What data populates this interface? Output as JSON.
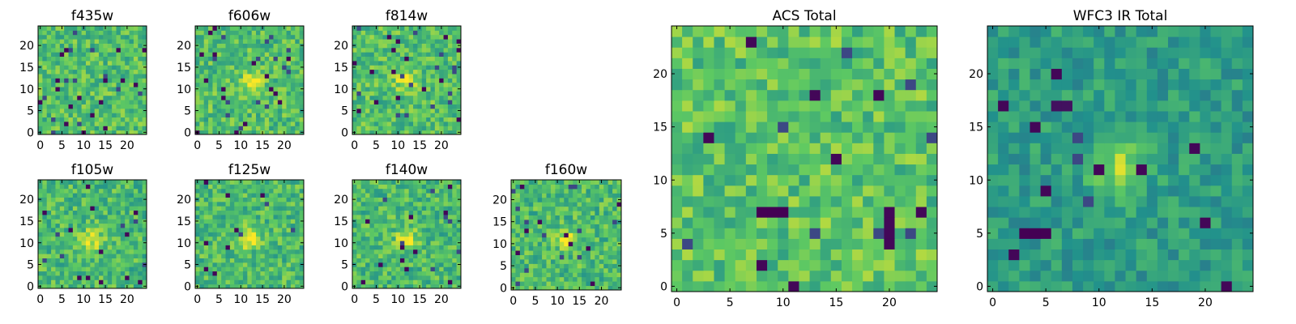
{
  "chart_data": [
    {
      "type": "heatmap",
      "title": "f435w",
      "colormap": "viridis",
      "grid": "25x25",
      "xlim": [
        0,
        25
      ],
      "ylim": [
        0,
        25
      ],
      "xticks": [
        0,
        5,
        10,
        15,
        20
      ],
      "yticks": [
        0,
        5,
        10,
        15,
        20
      ],
      "xtick_labels": [
        "0",
        "5",
        "10",
        "15",
        "20"
      ],
      "ytick_labels": [
        "0",
        "5",
        "10",
        "15",
        "20"
      ],
      "peak": null,
      "dark_pixels": 30
    },
    {
      "type": "heatmap",
      "title": "f606w",
      "colormap": "viridis",
      "grid": "25x25",
      "xlim": [
        0,
        25
      ],
      "ylim": [
        0,
        25
      ],
      "xticks": [
        0,
        5,
        10,
        15,
        20
      ],
      "yticks": [
        0,
        5,
        10,
        15,
        20
      ],
      "xtick_labels": [
        "0",
        "5",
        "10",
        "15",
        "20"
      ],
      "ytick_labels": [
        "0",
        "5",
        "10",
        "15",
        "20"
      ],
      "peak": [
        13,
        12
      ],
      "dark_pixels": 30
    },
    {
      "type": "heatmap",
      "title": "f814w",
      "colormap": "viridis",
      "grid": "25x25",
      "xlim": [
        0,
        25
      ],
      "ylim": [
        0,
        25
      ],
      "xticks": [
        0,
        5,
        10,
        15,
        20
      ],
      "yticks": [
        0,
        5,
        10,
        15,
        20
      ],
      "xtick_labels": [
        "0",
        "5",
        "10",
        "15",
        "20"
      ],
      "ytick_labels": [
        "0",
        "5",
        "10",
        "15",
        "20"
      ],
      "peak": [
        12,
        12
      ],
      "dark_pixels": 30
    },
    {
      "type": "heatmap",
      "title": "f105w",
      "colormap": "viridis",
      "grid": "25x25",
      "xlim": [
        0,
        25
      ],
      "ylim": [
        0,
        25
      ],
      "xticks": [
        0,
        5,
        10,
        15,
        20
      ],
      "yticks": [
        0,
        5,
        10,
        15,
        20
      ],
      "xtick_labels": [
        "0",
        "5",
        "10",
        "15",
        "20"
      ],
      "ytick_labels": [
        "0",
        "5",
        "10",
        "15",
        "20"
      ],
      "peak": [
        12,
        11
      ],
      "dark_pixels": 18
    },
    {
      "type": "heatmap",
      "title": "f125w",
      "colormap": "viridis",
      "grid": "25x25",
      "xlim": [
        0,
        25
      ],
      "ylim": [
        0,
        25
      ],
      "xticks": [
        0,
        5,
        10,
        15,
        20
      ],
      "yticks": [
        0,
        5,
        10,
        15,
        20
      ],
      "xtick_labels": [
        "0",
        "5",
        "10",
        "15",
        "20"
      ],
      "ytick_labels": [
        "0",
        "5",
        "10",
        "15",
        "20"
      ],
      "peak": [
        12,
        11
      ],
      "dark_pixels": 12
    },
    {
      "type": "heatmap",
      "title": "f140w",
      "colormap": "viridis",
      "grid": "25x25",
      "xlim": [
        0,
        25
      ],
      "ylim": [
        0,
        25
      ],
      "xticks": [
        0,
        5,
        10,
        15,
        20
      ],
      "yticks": [
        0,
        5,
        10,
        15,
        20
      ],
      "xtick_labels": [
        "0",
        "5",
        "10",
        "15",
        "20"
      ],
      "ytick_labels": [
        "0",
        "5",
        "10",
        "15",
        "20"
      ],
      "peak": [
        12,
        11
      ],
      "dark_pixels": 18
    },
    {
      "type": "heatmap",
      "title": "f160w",
      "colormap": "viridis",
      "grid": "25x25",
      "xlim": [
        0,
        25
      ],
      "ylim": [
        0,
        25
      ],
      "xticks": [
        0,
        5,
        10,
        15,
        20
      ],
      "yticks": [
        0,
        5,
        10,
        15,
        20
      ],
      "xtick_labels": [
        "0",
        "5",
        "10",
        "15",
        "20"
      ],
      "ytick_labels": [
        "0",
        "5",
        "10",
        "15",
        "20"
      ],
      "peak": [
        12,
        11
      ],
      "dark_pixels": 22
    },
    {
      "type": "heatmap",
      "title": "ACS Total",
      "colormap": "viridis",
      "grid": "25x25",
      "xlim": [
        0,
        25
      ],
      "ylim": [
        0,
        25
      ],
      "xticks": [
        0,
        5,
        10,
        15,
        20
      ],
      "yticks": [
        0,
        5,
        10,
        15,
        20
      ],
      "xtick_labels": [
        "0",
        "5",
        "10",
        "15",
        "20"
      ],
      "ytick_labels": [
        "0",
        "5",
        "10",
        "15",
        "20"
      ],
      "peak": null,
      "dark_pixels": 16
    },
    {
      "type": "heatmap",
      "title": "WFC3 IR Total",
      "colormap": "viridis",
      "grid": "25x25",
      "xlim": [
        0,
        25
      ],
      "ylim": [
        0,
        25
      ],
      "xticks": [
        0,
        5,
        10,
        15,
        20
      ],
      "yticks": [
        0,
        5,
        10,
        15,
        20
      ],
      "xtick_labels": [
        "0",
        "5",
        "10",
        "15",
        "20"
      ],
      "ytick_labels": [
        "0",
        "5",
        "10",
        "15",
        "20"
      ],
      "peak": [
        12,
        11
      ],
      "dark_pixels": 14
    }
  ]
}
